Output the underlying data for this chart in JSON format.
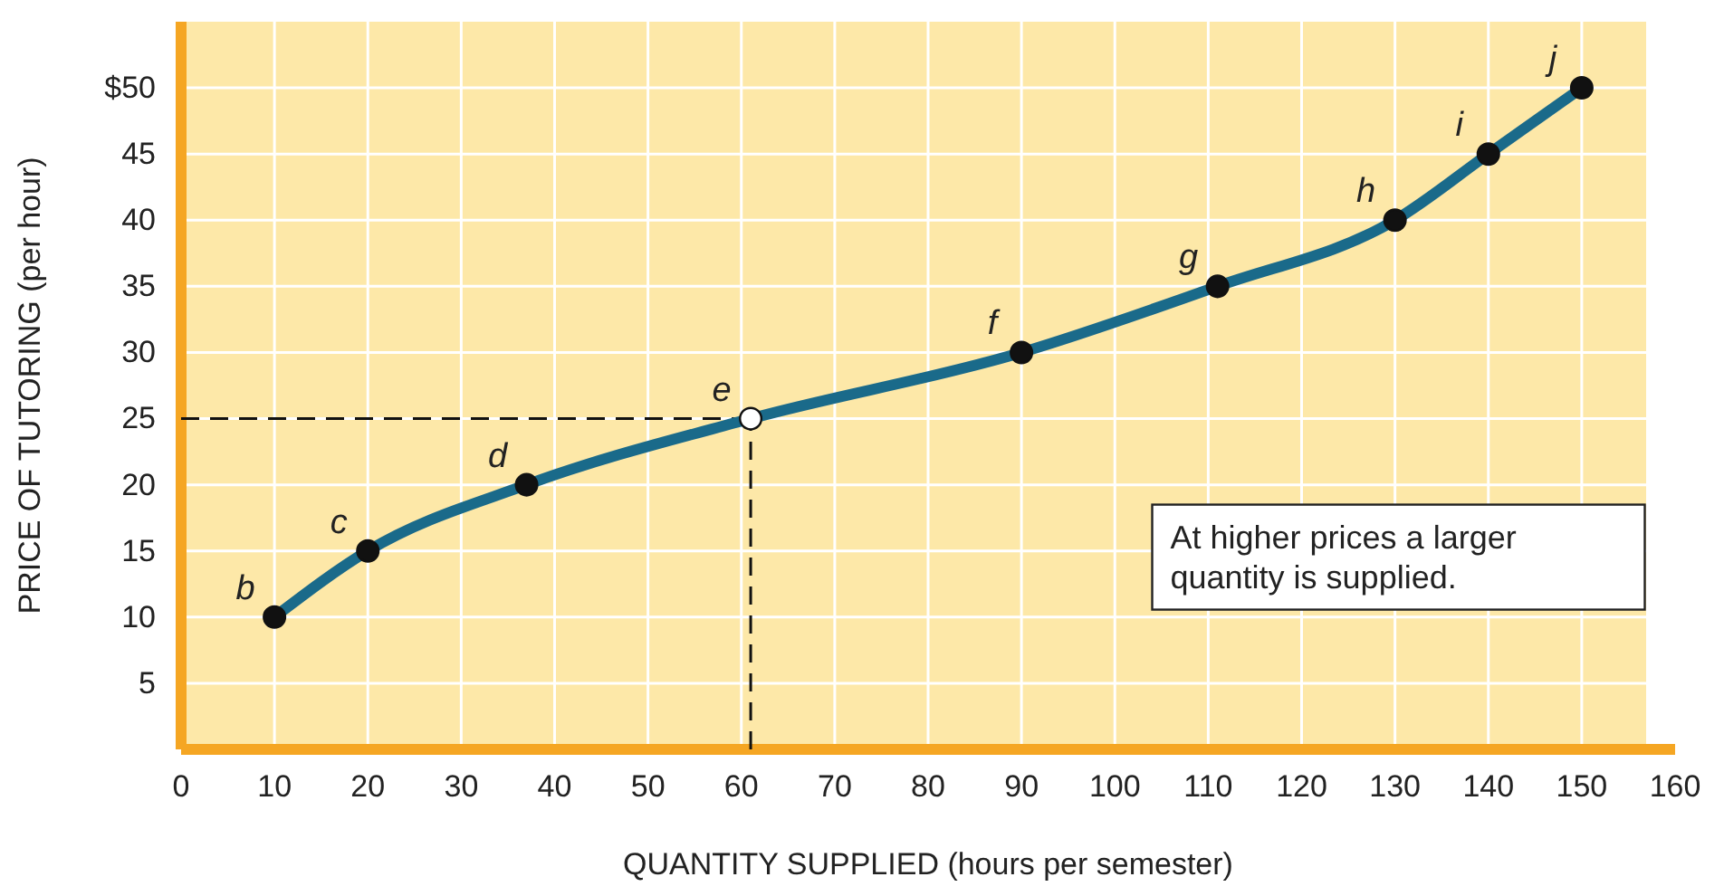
{
  "chart_data": {
    "type": "line",
    "xlabel": "QUANTITY SUPPLIED (hours per semester)",
    "ylabel": "PRICE OF TUTORING (per hour)",
    "x": [
      10,
      20,
      37,
      61,
      90,
      111,
      130,
      140,
      150
    ],
    "series": [
      {
        "color": "#1a6a8a",
        "values": [
          10,
          15,
          20,
          25,
          30,
          35,
          40,
          45,
          50
        ]
      },
      {
        "type": "scatter",
        "color": "#ffffff",
        "x": [
          61
        ],
        "values": [
          25
        ]
      }
    ],
    "marker": "circle",
    "line_style": "solid",
    "grid": true,
    "xlim": [
      0,
      160
    ],
    "ylim": [
      0,
      55
    ],
    "xticks": [
      0,
      10,
      20,
      30,
      40,
      50,
      60,
      70,
      80,
      90,
      100,
      110,
      120,
      130,
      140,
      150,
      160
    ],
    "yticks": [
      5,
      10,
      15,
      20,
      25,
      30,
      35,
      40,
      45,
      {
        "value": 50,
        "label": "$50"
      }
    ],
    "ref_lines": [
      {
        "axis": "x",
        "value": 61,
        "line_style": "dashed",
        "color": "#111111"
      },
      {
        "axis": "y",
        "value": 25,
        "line_style": "dashed",
        "color": "#111111"
      }
    ],
    "annotations": [
      {
        "text": "b",
        "x": 10,
        "y": 10
      },
      {
        "text": "c",
        "x": 20,
        "y": 15
      },
      {
        "text": "d",
        "x": 37,
        "y": 20
      },
      {
        "text": "e",
        "x": 61,
        "y": 25
      },
      {
        "text": "f",
        "x": 90,
        "y": 30
      },
      {
        "text": "g",
        "x": 111,
        "y": 35
      },
      {
        "text": "h",
        "x": 130,
        "y": 40
      },
      {
        "text": "i",
        "x": 140,
        "y": 45
      },
      {
        "text": "j",
        "x": 150,
        "y": 50
      },
      "At higher prices a larger quantity is supplied."
    ]
  }
}
